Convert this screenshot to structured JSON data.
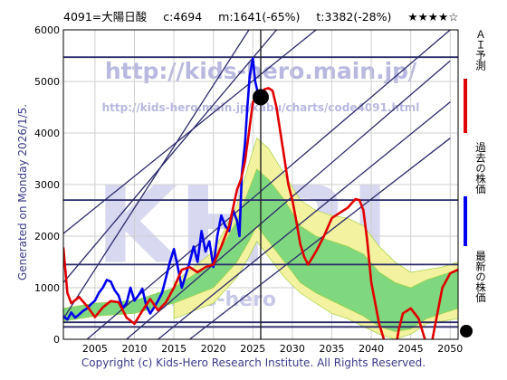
{
  "header": {
    "code_name": "4091=大陽日酸",
    "current": "c:4694",
    "min": "m:1641(-65%)",
    "target": "t:3382(-28%)",
    "stars": "★★★★☆"
  },
  "watermark": {
    "url1": "http://kids-hero.main.jp/",
    "url2": "http://kids-hero.main.jp/kabu/charts/code4091.html",
    "big": "KHRI",
    "site": "@kids-hero"
  },
  "side_label": "Generated on Monday 2026/1/5.",
  "footer": "Copyright (c) Kids-Hero Research Institute. All Rights Reserved.",
  "legend": {
    "ai": "ＡＩ予測",
    "past": "過去の株価",
    "latest": "最新の株価"
  },
  "colors": {
    "price": "#0000ee",
    "ai": "#e00000",
    "green_band": "#7fd87f",
    "yellow_band": "#f2f2a0",
    "trend_lines": "#2a2a6a",
    "background": "#ffffff"
  },
  "chart_data": {
    "type": "line",
    "xlim": [
      2001,
      2051
    ],
    "ylim": [
      0,
      6000
    ],
    "x_ticks": [
      2005,
      2010,
      2015,
      2020,
      2025,
      2030,
      2035,
      2040,
      2045,
      2050
    ],
    "y_ticks": [
      0,
      1000,
      2000,
      3000,
      4000,
      5000,
      6000
    ],
    "grid": true,
    "horizontal_levels": [
      5470,
      2700,
      1450,
      330,
      240
    ],
    "current_marker": {
      "x": 2026.0,
      "y": 4694
    },
    "vertical_marker_x": 2026.0,
    "trend_lines": [
      {
        "x": [
          2001,
          2024.5
        ],
        "y": [
          400,
          6000
        ]
      },
      {
        "x": [
          2001,
          2028
        ],
        "y": [
          1100,
          6000
        ]
      },
      {
        "x": [
          2001,
          2033
        ],
        "y": [
          2050,
          6000
        ]
      },
      {
        "x": [
          2004,
          2050
        ],
        "y": [
          0,
          6000
        ]
      },
      {
        "x": [
          2009,
          2050
        ],
        "y": [
          0,
          5400
        ]
      },
      {
        "x": [
          2013,
          2050
        ],
        "y": [
          0,
          4600
        ]
      },
      {
        "x": [
          2017,
          2050
        ],
        "y": [
          0,
          3900
        ]
      }
    ],
    "series": [
      {
        "name": "過去の株価",
        "color": "#0000ee",
        "x": [
          2001.0,
          2001.5,
          2002.0,
          2002.5,
          2003.0,
          2003.5,
          2004.0,
          2004.5,
          2005.0,
          2005.5,
          2006.0,
          2006.5,
          2007.0,
          2007.5,
          2008.0,
          2008.5,
          2009.0,
          2009.5,
          2010.0,
          2010.5,
          2011.0,
          2011.5,
          2012.0,
          2012.5,
          2013.0,
          2013.5,
          2014.0,
          2014.5,
          2015.0,
          2015.5,
          2016.0,
          2016.5,
          2017.0,
          2017.5,
          2018.0,
          2018.5,
          2019.0,
          2019.5,
          2020.0,
          2020.5,
          2021.0,
          2021.5,
          2022.0,
          2022.5,
          2023.0,
          2023.3,
          2023.6,
          2024.0,
          2024.3,
          2024.6,
          2025.0,
          2025.3,
          2025.6,
          2026.0
        ],
        "y": [
          450,
          380,
          520,
          420,
          480,
          550,
          600,
          680,
          750,
          900,
          1000,
          1150,
          1120,
          950,
          850,
          600,
          700,
          1000,
          750,
          850,
          980,
          650,
          500,
          620,
          750,
          900,
          1200,
          1500,
          1750,
          1400,
          1000,
          1250,
          1500,
          1800,
          1500,
          2100,
          1700,
          1900,
          1400,
          2000,
          2400,
          2200,
          2100,
          2500,
          2300,
          2000,
          3200,
          3800,
          4500,
          5100,
          5450,
          5000,
          4800,
          4694
        ]
      },
      {
        "name": "ＡＩ予測",
        "color": "#e00000",
        "x": [
          2001.0,
          2001.5,
          2002.0,
          2003.0,
          2004.0,
          2005.0,
          2006.0,
          2007.0,
          2008.0,
          2009.0,
          2010.0,
          2011.0,
          2012.0,
          2013.0,
          2014.0,
          2015.0,
          2016.0,
          2017.0,
          2018.0,
          2019.0,
          2020.0,
          2021.0,
          2022.0,
          2023.0,
          2023.5,
          2024.0,
          2024.5,
          2025.0,
          2026.0,
          2026.5,
          2027.0,
          2027.5,
          2028.0,
          2028.5,
          2029.0,
          2029.5,
          2030.0,
          2030.5,
          2031.0,
          2031.5,
          2032.0,
          2033.0,
          2034.0,
          2035.0,
          2036.0,
          2037.0,
          2038.0,
          2038.5,
          2039.0,
          2039.5,
          2040.0,
          2041.0,
          2042.0,
          2043.0,
          2043.5,
          2044.0,
          2045.0,
          2046.0,
          2047.0,
          2047.5,
          2048.0,
          2048.5,
          2049.0,
          2050.0,
          2051.0
        ],
        "y": [
          1780,
          900,
          700,
          820,
          640,
          430,
          620,
          740,
          720,
          420,
          300,
          550,
          780,
          560,
          720,
          1000,
          1350,
          1400,
          1300,
          1400,
          1450,
          1800,
          2200,
          2900,
          3100,
          3450,
          4000,
          4600,
          4780,
          4850,
          4870,
          4820,
          4500,
          4000,
          3500,
          3000,
          2700,
          2300,
          1850,
          1600,
          1450,
          1700,
          2000,
          2350,
          2450,
          2550,
          2720,
          2700,
          2500,
          1900,
          1100,
          300,
          -200,
          -250,
          200,
          500,
          600,
          400,
          -100,
          -200,
          200,
          600,
          1000,
          1280,
          1350
        ]
      }
    ],
    "bands": {
      "yellow_upper": {
        "x": [
          2015,
          2020,
          2023,
          2024.5,
          2025.5,
          2027,
          2029,
          2031,
          2033,
          2035,
          2037,
          2039,
          2041,
          2043,
          2045,
          2047,
          2049,
          2051
        ],
        "y": [
          1100,
          1700,
          2600,
          3400,
          3900,
          3700,
          3200,
          2700,
          2500,
          2400,
          2350,
          2200,
          1800,
          1500,
          1300,
          1350,
          1400,
          1500
        ]
      },
      "yellow_lower": {
        "x": [
          2015,
          2020,
          2023,
          2024.5,
          2025.5,
          2027,
          2029,
          2031,
          2033,
          2035,
          2037,
          2039,
          2041,
          2043,
          2045,
          2047,
          2049,
          2051
        ],
        "y": [
          400,
          700,
          1200,
          1600,
          1900,
          1600,
          1200,
          900,
          700,
          500,
          400,
          250,
          100,
          0,
          100,
          300,
          350,
          400
        ]
      },
      "green_upper": {
        "x": [
          2001,
          2005,
          2010,
          2015,
          2020,
          2023,
          2024.5,
          2025.5,
          2027,
          2029,
          2031,
          2033,
          2035,
          2037,
          2039,
          2041,
          2043,
          2045,
          2047,
          2049,
          2051
        ],
        "y": [
          600,
          700,
          750,
          1000,
          1500,
          2300,
          2900,
          3300,
          3100,
          2700,
          2200,
          2000,
          1900,
          1800,
          1650,
          1300,
          1100,
          1000,
          1150,
          1250,
          1350
        ]
      },
      "green_lower": {
        "x": [
          2001,
          2005,
          2010,
          2015,
          2020,
          2023,
          2024.5,
          2025.5,
          2027,
          2029,
          2031,
          2033,
          2035,
          2037,
          2039,
          2041,
          2043,
          2045,
          2047,
          2049,
          2051
        ],
        "y": [
          350,
          450,
          500,
          700,
          1000,
          1500,
          1900,
          2200,
          1900,
          1500,
          1100,
          900,
          750,
          600,
          450,
          250,
          150,
          200,
          400,
          500,
          600
        ]
      }
    }
  }
}
